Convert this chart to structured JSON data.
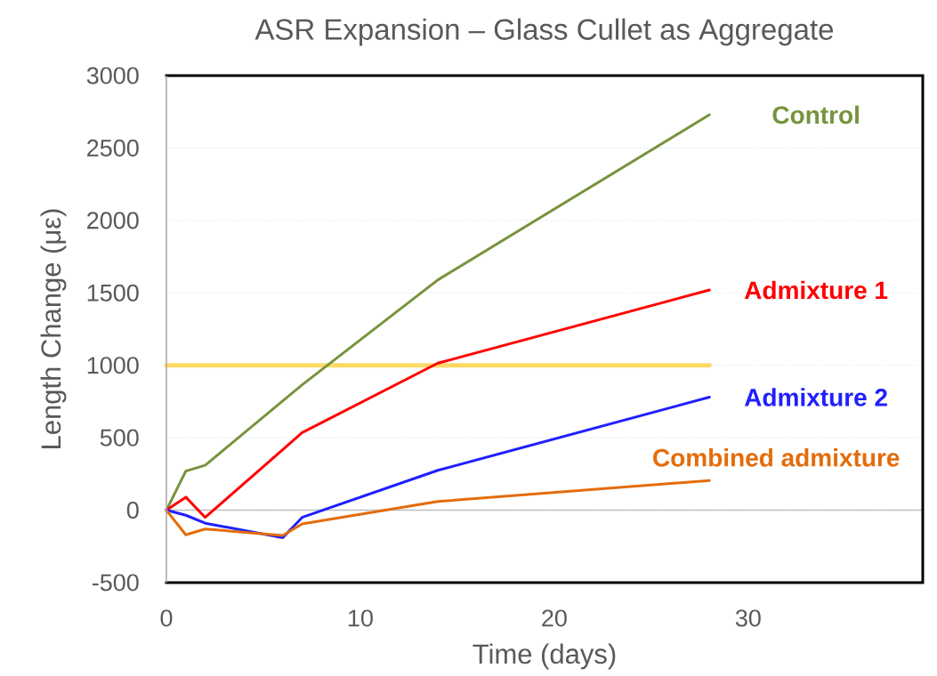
{
  "chart_data": {
    "type": "line",
    "title": "ASR Expansion – Glass Cullet as Aggregate",
    "xlabel": "Time (days)",
    "ylabel": "Length Change (με)",
    "xlim": [
      0,
      39
    ],
    "xticks": [
      0,
      10,
      20,
      30
    ],
    "ylim": [
      -500,
      3000
    ],
    "yticks": [
      -500,
      0,
      500,
      1000,
      1500,
      2000,
      2500,
      3000
    ],
    "grid": "y",
    "series": [
      {
        "color": "#ffd966",
        "x": [
          0,
          28
        ],
        "values": [
          1000,
          1000
        ]
      },
      {
        "name": "Control",
        "color": "#77933c",
        "x": [
          0,
          1,
          2,
          7,
          14,
          28
        ],
        "values": [
          0,
          270,
          310,
          865,
          1590,
          2730
        ]
      },
      {
        "name": "Admixture 1",
        "color": "#ff0000",
        "x": [
          0,
          1,
          2,
          7,
          14,
          28
        ],
        "values": [
          0,
          90,
          -50,
          535,
          1015,
          1520
        ]
      },
      {
        "name": "Admixture 2",
        "color": "#1f1fff",
        "x": [
          0,
          1,
          2,
          6,
          7,
          14,
          28
        ],
        "values": [
          0,
          -35,
          -90,
          -190,
          -50,
          275,
          780
        ]
      },
      {
        "name": "Combined admixture",
        "color": "#e46c0a",
        "x": [
          0,
          1,
          2,
          6,
          7,
          14,
          28
        ],
        "values": [
          0,
          -170,
          -130,
          -175,
          -95,
          60,
          205
        ]
      }
    ]
  }
}
